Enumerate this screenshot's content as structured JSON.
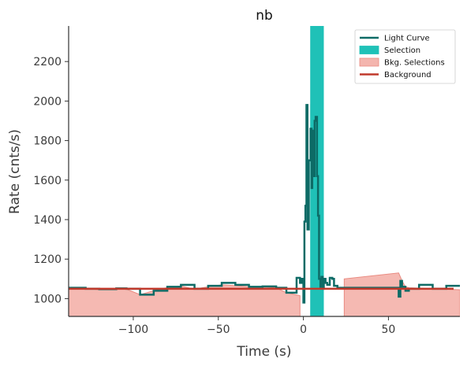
{
  "chart_data": {
    "type": "line",
    "title": "nb",
    "xlabel": "Time (s)",
    "ylabel": "Rate (cnts/s)",
    "xlim": [
      -138,
      92
    ],
    "ylim": [
      910,
      2380
    ],
    "xticks": [
      -100,
      -50,
      0,
      50
    ],
    "xtick_labels": [
      "−100",
      "−50",
      "0",
      "50"
    ],
    "yticks": [
      1000,
      1200,
      1400,
      1600,
      1800,
      2000,
      2200
    ],
    "ytick_labels": [
      "1000",
      "1200",
      "1400",
      "1600",
      "1800",
      "2000",
      "2200"
    ],
    "legend_position": "top-right",
    "legend": [
      {
        "label": "Light Curve",
        "kind": "line"
      },
      {
        "label": "Selection",
        "kind": "patch"
      },
      {
        "label": "Bkg. Selections",
        "kind": "patch"
      },
      {
        "label": "Background",
        "kind": "line"
      }
    ],
    "colors": {
      "light_curve": "#0d6b66",
      "selection": "#1fc1b7",
      "bkg_selection_fill": "#f4b5ae",
      "bkg_selection_edge": "#e98a80",
      "background": "#c0392b",
      "axes": "#333333"
    },
    "series": [
      {
        "name": "Light Curve",
        "style": "step",
        "x": [
          -138,
          -128,
          -120,
          -110,
          -104,
          -96,
          -88,
          -80,
          -72,
          -64,
          -56,
          -48,
          -40,
          -32,
          -24,
          -16,
          -10,
          -4,
          -2,
          -1,
          0,
          0.6,
          1.2,
          1.8,
          2.4,
          3.2,
          4.2,
          4.8,
          5.2,
          6,
          6.6,
          7.2,
          8,
          8.6,
          9.2,
          10,
          10.6,
          11.4,
          12,
          13,
          14,
          15.5,
          17,
          18,
          20,
          56,
          57,
          58,
          60,
          62,
          68,
          76,
          84,
          92
        ],
        "y": [
          1055,
          1050,
          1048,
          1052,
          1050,
          1020,
          1040,
          1060,
          1070,
          1050,
          1065,
          1080,
          1070,
          1060,
          1062,
          1055,
          1030,
          1105,
          1080,
          1100,
          980,
          1390,
          1470,
          1980,
          1350,
          1700,
          1860,
          1560,
          1850,
          1620,
          1900,
          1920,
          1620,
          1420,
          1100,
          1060,
          1110,
          1050,
          1100,
          1080,
          1070,
          1105,
          1100,
          1065,
          1055,
          1010,
          1090,
          1060,
          1040,
          1050,
          1070,
          1050,
          1065,
          1065
        ]
      },
      {
        "name": "Background",
        "style": "line",
        "x": [
          -138,
          92
        ],
        "y": [
          1050,
          1050
        ]
      }
    ],
    "selection": {
      "x_start": 4,
      "x_end": 12
    },
    "bkg_selections": [
      {
        "x": [
          -138,
          -128,
          -120,
          -110,
          -104,
          -96,
          -88,
          -80,
          -72,
          -64,
          -56,
          -48,
          -40,
          -32,
          -24,
          -16,
          -10,
          -2
        ],
        "y": [
          1050,
          1050,
          1046,
          1052,
          1048,
          1020,
          1040,
          1056,
          1064,
          1048,
          1060,
          1070,
          1066,
          1060,
          1062,
          1054,
          1030,
          1015
        ]
      },
      {
        "x": [
          24,
          56,
          58,
          60,
          62,
          92
        ],
        "y": [
          1100,
          1130,
          1090,
          1060,
          1055,
          1045
        ]
      }
    ]
  }
}
